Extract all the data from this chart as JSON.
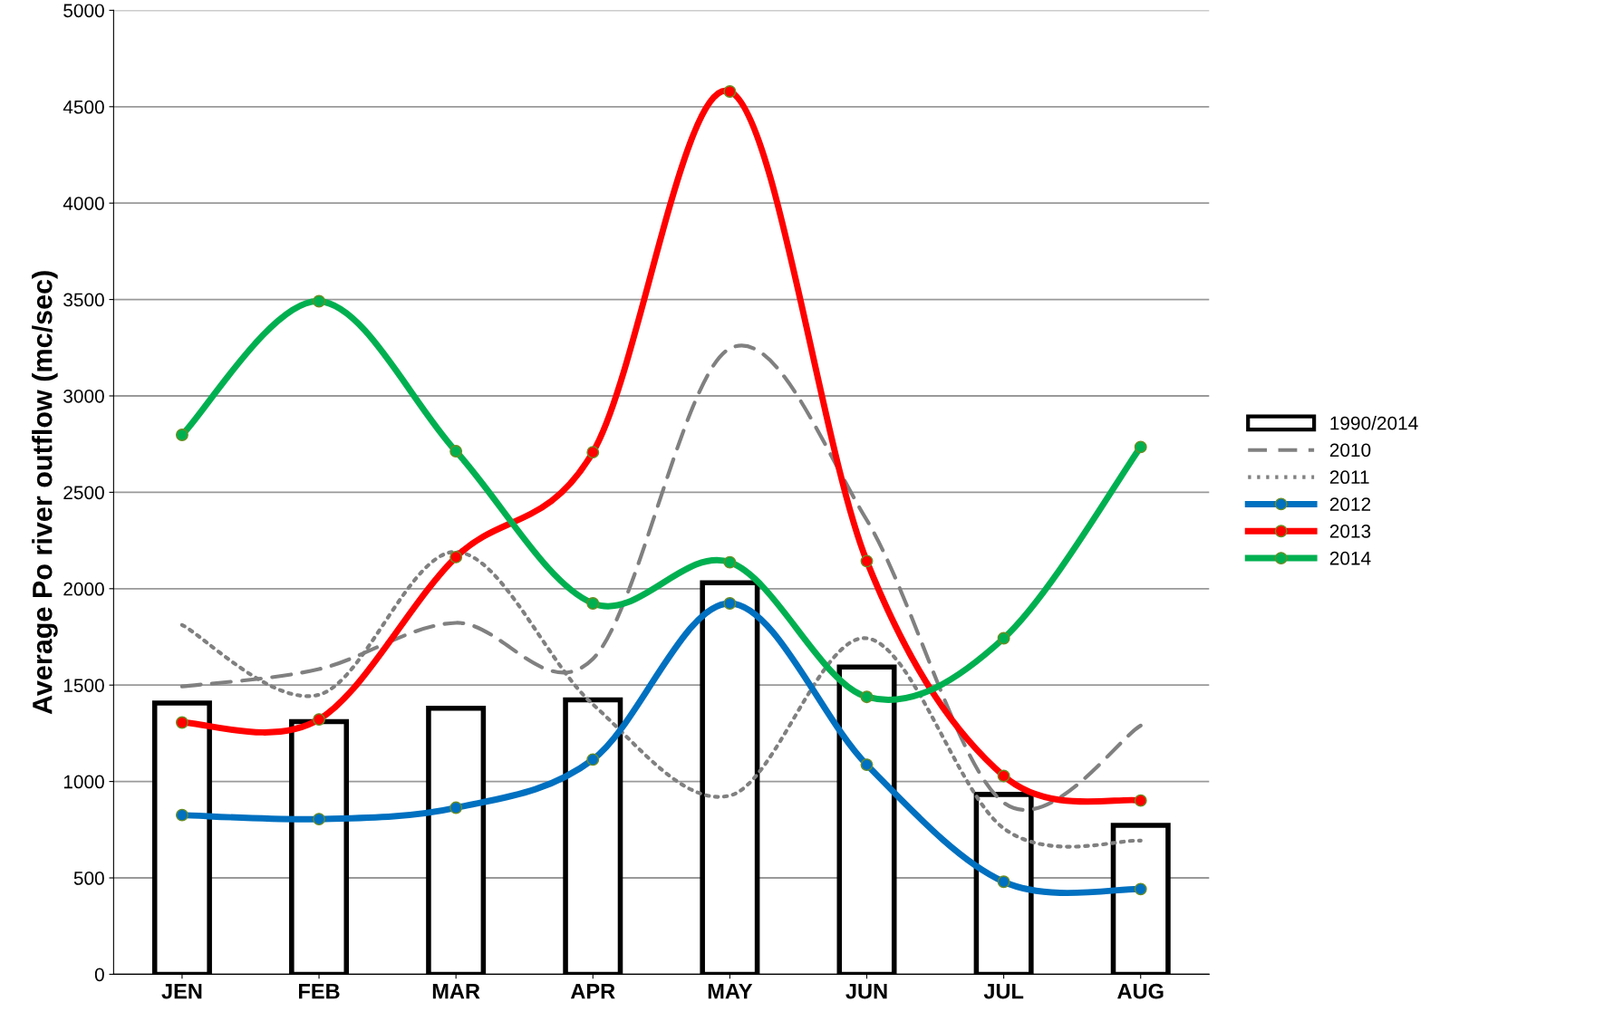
{
  "chart_data": {
    "type": "bar",
    "ylabel": "Average Po river outflow (mc/sec)",
    "categories": [
      "JEN",
      "FEB",
      "MAR",
      "APR",
      "MAY",
      "JUN",
      "JUL",
      "AUG"
    ],
    "series": [
      {
        "name": "1990/2014",
        "color": "#ffffff",
        "values": [
          1407,
          1311,
          1380,
          1423,
          2031,
          1594,
          933,
          773
        ]
      },
      {
        "name": "2010",
        "type": "line",
        "color": "#808080",
        "line_style": "dashed",
        "marker": "none",
        "values": [
          1493,
          1583,
          1823,
          1636,
          3246,
          2356,
          890,
          1290
        ]
      },
      {
        "name": "2011",
        "type": "line",
        "color": "#808080",
        "line_style": "dotted",
        "marker": "none",
        "values": [
          1812,
          1450,
          2191,
          1400,
          927,
          1743,
          757,
          693
        ]
      },
      {
        "name": "2012",
        "type": "line",
        "color": "#0070c0",
        "line_style": "solid",
        "marker": "circle",
        "values": [
          826,
          805,
          864,
          1114,
          1924,
          1087,
          480,
          442
        ]
      },
      {
        "name": "2013",
        "type": "line",
        "color": "#ff0000",
        "line_style": "solid",
        "marker": "circle",
        "values": [
          1306,
          1322,
          2164,
          2708,
          4579,
          2143,
          1029,
          901
        ]
      },
      {
        "name": "2014",
        "type": "line",
        "color": "#00b050",
        "line_style": "solid",
        "marker": "circle",
        "values": [
          2798,
          3491,
          2713,
          1924,
          2137,
          1439,
          1743,
          2735
        ]
      }
    ],
    "ylim": [
      0,
      5000
    ],
    "yticks": [
      0,
      500,
      1000,
      1500,
      2000,
      2500,
      3000,
      3500,
      4000,
      4500,
      5000
    ],
    "grid": "y",
    "legend": "right"
  }
}
